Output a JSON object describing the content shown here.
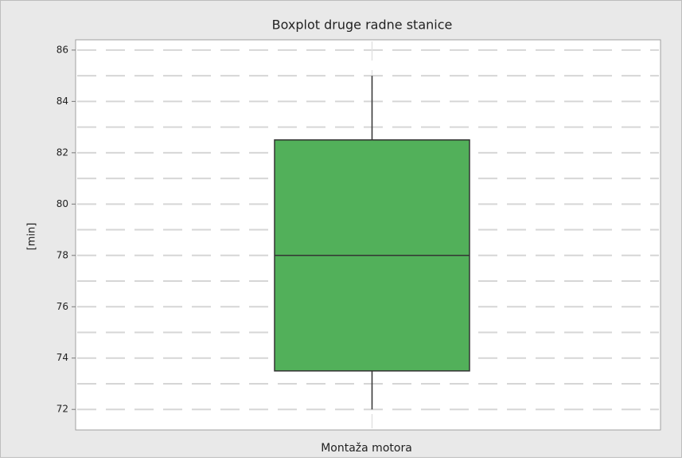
{
  "chart_data": {
    "type": "box",
    "title": "Boxplot druge radne stanice",
    "ylabel": "[min]",
    "categories": [
      "Montaža motora"
    ],
    "boxes": [
      {
        "min": 72,
        "q1": 73.5,
        "median": 78,
        "q3": 82.5,
        "max": 85
      }
    ],
    "color": "#52b05a",
    "ylim": [
      71.2,
      86.4
    ],
    "yticks": [
      72,
      74,
      76,
      78,
      80,
      82,
      84,
      86
    ],
    "minor_yticks": [
      73,
      75,
      77,
      79,
      81,
      83,
      85
    ],
    "grid": true
  }
}
